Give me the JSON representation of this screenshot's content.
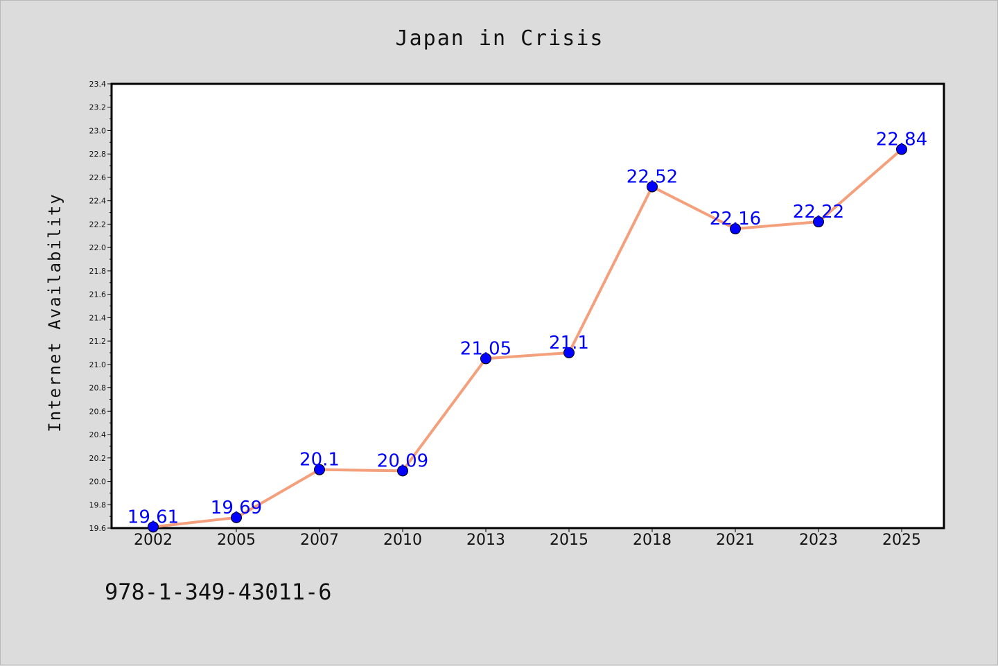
{
  "chart_data": {
    "type": "line",
    "title": "Japan in Crisis",
    "xlabel": "",
    "ylabel": "Internet Availability",
    "categories": [
      "2002",
      "2005",
      "2007",
      "2010",
      "2013",
      "2015",
      "2018",
      "2021",
      "2023",
      "2025"
    ],
    "series": [
      {
        "values": [
          19.61,
          19.69,
          20.1,
          20.09,
          21.05,
          21.1,
          22.52,
          22.16,
          22.22,
          22.84
        ]
      }
    ],
    "data_labels": [
      "19.61",
      "19.69",
      "20.1",
      "20.09",
      "21.05",
      "21.1",
      "22.52",
      "22.16",
      "22.22",
      "22.84"
    ],
    "ylim": [
      19.6,
      23.4
    ],
    "y_ticks": [
      "19.6",
      "19.8",
      "20.0",
      "20.2",
      "20.4",
      "20.6",
      "20.8",
      "21.0",
      "21.2",
      "21.4",
      "21.6",
      "21.8",
      "22.0",
      "22.2",
      "22.4",
      "22.6",
      "22.8",
      "23.0",
      "23.2",
      "23.4"
    ],
    "grid": false,
    "legend": "none",
    "colors": {
      "line": "#f4a07c",
      "marker": "#0000ff",
      "data_label": "#0000ff",
      "background": "#dcdcdc",
      "plot_area": "#ffffff"
    }
  },
  "footer": {
    "isbn": "978-1-349-43011-6"
  }
}
